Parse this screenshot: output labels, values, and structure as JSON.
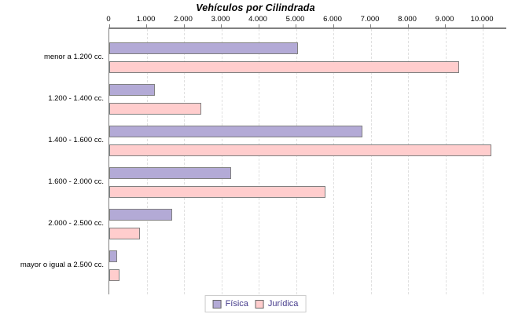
{
  "chart_data": {
    "type": "bar",
    "orientation": "horizontal",
    "title": "Vehículos por Cilindrada",
    "categories": [
      "menor a 1.200 cc.",
      "1.200 - 1.400 cc.",
      "1.400 - 1.600 cc.",
      "1.600 - 2.000 cc.",
      "2.000 - 2.500 cc.",
      "mayor o igual a 2.500 cc."
    ],
    "series": [
      {
        "name": "Física",
        "color": "#b3aad6",
        "border": "#808080",
        "values": [
          5050,
          1220,
          6780,
          3270,
          1680,
          200
        ]
      },
      {
        "name": "Jurídica",
        "color": "#ffcdcd",
        "border": "#808080",
        "values": [
          9370,
          2470,
          10230,
          5780,
          830,
          270
        ]
      }
    ],
    "x_ticks": [
      {
        "value": 0,
        "label": "0"
      },
      {
        "value": 1000,
        "label": "1.000"
      },
      {
        "value": 2000,
        "label": "2.000"
      },
      {
        "value": 3000,
        "label": "3.000"
      },
      {
        "value": 4000,
        "label": "4.000"
      },
      {
        "value": 5000,
        "label": "5.000"
      },
      {
        "value": 6000,
        "label": "6.000"
      },
      {
        "value": 7000,
        "label": "7.000"
      },
      {
        "value": 8000,
        "label": "8.000"
      },
      {
        "value": 9000,
        "label": "9.000"
      },
      {
        "value": 10000,
        "label": "10.000"
      }
    ],
    "xlim": [
      0,
      10630
    ],
    "xlabel": "",
    "ylabel": "",
    "grid": "vertical-dashed",
    "legend_position": "bottom-center",
    "colors": {
      "axis": "#808080",
      "gridline": "#e0e0e0",
      "title_text": "#000000",
      "label_text": "#000000",
      "legend_text": "#463c8c",
      "legend_border": "#cccccc",
      "background": "#ffffff"
    }
  }
}
